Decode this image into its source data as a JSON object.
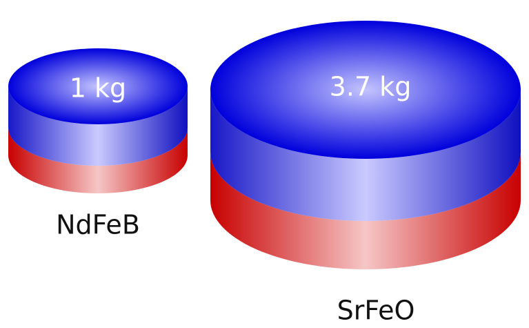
{
  "magnets": [
    {
      "mass": "1 kg",
      "label": "NdFeB"
    },
    {
      "mass": "3.7 kg",
      "label": "SrFeO"
    }
  ]
}
